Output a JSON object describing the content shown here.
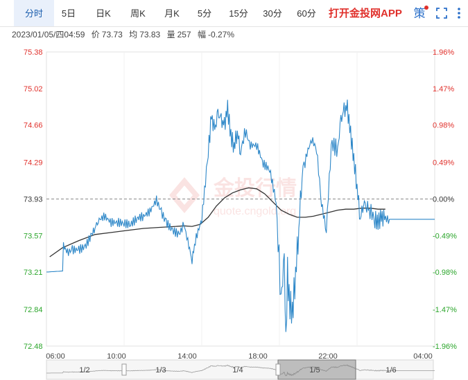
{
  "tabs": [
    {
      "label": "分时",
      "active": true
    },
    {
      "label": "5日"
    },
    {
      "label": "日K"
    },
    {
      "label": "周K"
    },
    {
      "label": "月K"
    },
    {
      "label": "5分"
    },
    {
      "label": "15分"
    },
    {
      "label": "30分"
    },
    {
      "label": "60分"
    }
  ],
  "promo": "打开金投网APP",
  "icons": {
    "strategy": "策",
    "fullscreen": "fullscreen-icon",
    "more": "more-icon"
  },
  "info": {
    "datetime": "2023/01/05/四04:59",
    "price_label": "价",
    "price": "73.73",
    "avg_label": "均",
    "avg": "73.83",
    "vol_label": "量",
    "vol": "257",
    "chg_label": "幅",
    "chg": "-0.27%"
  },
  "watermark": {
    "cn": "金投行情",
    "en": "quote.cngold.org"
  },
  "colors": {
    "up": "#e0302b",
    "down": "#2aa52a",
    "flat": "#333333",
    "price_line": "#2d87c8",
    "avg_line": "#333333"
  },
  "navigator": {
    "labels": [
      "1/2",
      "1/3",
      "1/4",
      "1/5",
      "1/6"
    ]
  },
  "chart_data": {
    "type": "line",
    "prev_close": 73.93,
    "ylim": [
      72.48,
      75.38
    ],
    "y_ticks": [
      "75.38",
      "75.02",
      "74.66",
      "74.29",
      "73.93",
      "73.57",
      "73.21",
      "72.84",
      "72.48"
    ],
    "pct_ticks": [
      "1.96%",
      "1.47%",
      "0.98%",
      "0.49%",
      "0.00%",
      "-0.49%",
      "-0.98%",
      "-1.47%",
      "-1.96%"
    ],
    "x_ticks": [
      "06:00",
      "10:00",
      "14:00",
      "18:00",
      "22:00",
      "04:00"
    ],
    "x_hours": [
      0,
      24
    ],
    "series": [
      {
        "name": "价",
        "x": [
          0,
          1.0,
          1.05,
          1.3,
          1.6,
          2.0,
          2.4,
          2.8,
          3.0,
          3.2,
          3.6,
          4.0,
          4.4,
          4.8,
          5.2,
          5.6,
          6.0,
          6.4,
          6.8,
          7.1,
          7.4,
          7.8,
          8.2,
          8.5,
          8.8,
          9.0,
          9.2,
          9.6,
          10.0,
          10.2,
          10.4,
          10.6,
          10.8,
          11.0,
          11.2,
          11.4,
          11.6,
          11.8,
          12.0,
          12.3,
          12.6,
          13.0,
          13.4,
          13.8,
          14.2,
          14.5,
          14.7,
          14.8,
          14.9,
          15.0,
          15.2,
          15.4,
          15.6,
          15.8,
          16.1,
          16.4,
          16.7,
          17.0,
          17.3,
          17.6,
          18.0,
          18.2,
          18.4,
          18.6,
          18.8,
          19.0,
          19.2,
          19.4,
          19.6,
          19.8,
          20.0,
          20.3,
          20.5,
          20.7,
          20.9,
          21.2,
          21.6,
          22.0,
          22.3,
          22.6,
          22.9,
          23.2,
          23.5,
          23.8,
          24.0
        ],
        "values": [
          73.21,
          73.22,
          73.47,
          73.4,
          73.43,
          73.43,
          73.46,
          73.58,
          73.65,
          73.72,
          73.76,
          73.7,
          73.7,
          73.69,
          73.68,
          73.74,
          73.76,
          73.81,
          73.92,
          73.8,
          73.7,
          73.62,
          73.58,
          73.68,
          73.47,
          73.33,
          73.52,
          73.73,
          74.4,
          74.74,
          74.6,
          74.77,
          74.7,
          74.65,
          74.82,
          74.55,
          74.45,
          74.6,
          74.4,
          74.6,
          74.46,
          74.46,
          74.28,
          74.22,
          73.9,
          72.96,
          73.3,
          72.48,
          73.2,
          72.94,
          72.8,
          73.2,
          73.65,
          74.2,
          74.38,
          74.52,
          74.42,
          73.89,
          73.62,
          74.48,
          74.42,
          74.7,
          74.8,
          74.82,
          74.57,
          74.32,
          74.05,
          73.74,
          73.9,
          73.87,
          73.82,
          73.73,
          73.7,
          73.75,
          73.73,
          73.73,
          73.73,
          73.73,
          73.73,
          73.73,
          73.73,
          73.73,
          73.73,
          73.73,
          73.73
        ]
      },
      {
        "name": "均",
        "x": [
          0.2,
          1.0,
          2.0,
          3.0,
          4.0,
          5.0,
          6.0,
          7.0,
          8.0,
          8.5,
          9.0,
          9.5,
          10.0,
          10.5,
          11.0,
          11.5,
          12.0,
          12.5,
          13.0,
          13.5,
          14.0,
          14.5,
          15.0,
          15.5,
          16.0,
          16.5,
          17.0,
          17.5,
          18.0,
          18.5,
          19.0,
          19.5,
          20.0,
          20.5,
          20.95
        ],
        "values": [
          73.36,
          73.45,
          73.52,
          73.58,
          73.6,
          73.62,
          73.64,
          73.65,
          73.66,
          73.665,
          73.66,
          73.68,
          73.75,
          73.86,
          73.94,
          73.99,
          74.02,
          74.04,
          74.03,
          73.98,
          73.9,
          73.82,
          73.78,
          73.75,
          73.75,
          73.76,
          73.78,
          73.8,
          73.82,
          73.83,
          73.83,
          73.84,
          73.84,
          73.83,
          73.83
        ]
      }
    ]
  }
}
